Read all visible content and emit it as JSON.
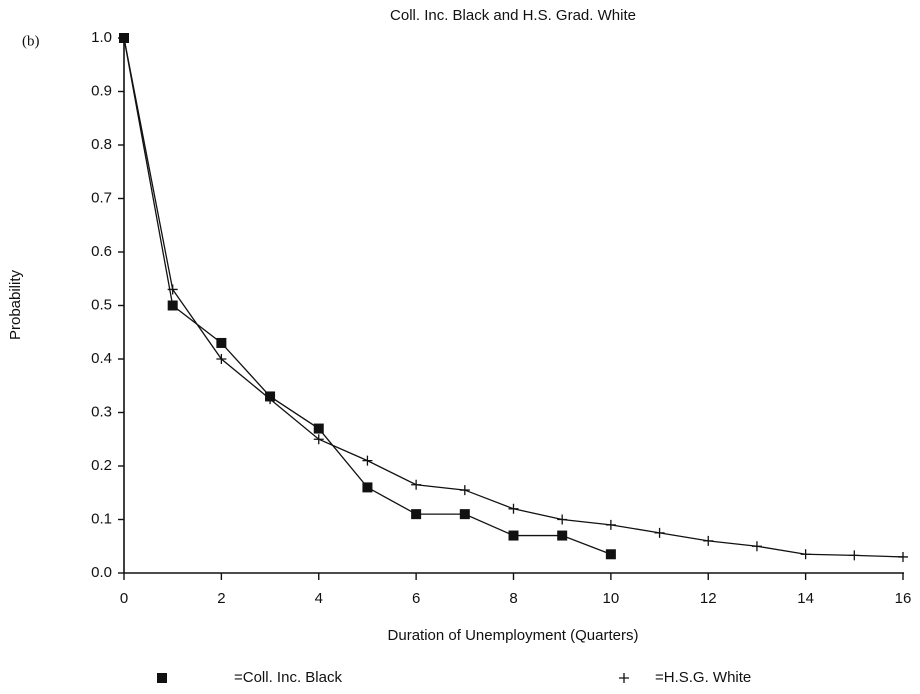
{
  "chart_data": {
    "type": "line",
    "title": "Coll. Inc. Black and H.S. Grad. White",
    "panel_label": "(b)",
    "x_label": "Duration of Unemployment (Quarters)",
    "y_label": "Probability",
    "xlim": [
      0,
      16
    ],
    "ylim": [
      0,
      1
    ],
    "xticks": [
      0,
      2,
      4,
      6,
      8,
      10,
      12,
      14,
      16
    ],
    "yticks": [
      {
        "value": 0,
        "label": "0.0"
      },
      0.1,
      0.2,
      0.3,
      0.4,
      0.5,
      0.6,
      0.7,
      0.8,
      0.9,
      {
        "value": 1,
        "label": "1.0"
      }
    ],
    "series": [
      {
        "name": "=Coll. Inc. Black",
        "color": "#111111",
        "marker": "square",
        "x": [
          0,
          1,
          2,
          3,
          4,
          5,
          6,
          7,
          8,
          9,
          10
        ],
        "values": [
          1.0,
          0.5,
          0.43,
          0.33,
          0.27,
          0.16,
          0.11,
          0.11,
          0.07,
          0.07,
          0.035
        ]
      },
      {
        "name": "=H.S.G. White",
        "color": "#111111",
        "marker": "plus",
        "x": [
          0,
          1,
          2,
          3,
          4,
          5,
          6,
          7,
          8,
          9,
          10,
          11,
          12,
          13,
          14,
          15,
          16
        ],
        "values": [
          1.0,
          0.53,
          0.4,
          0.325,
          0.25,
          0.21,
          0.165,
          0.155,
          0.12,
          0.1,
          0.09,
          0.075,
          0.06,
          0.05,
          0.035,
          0.033,
          0.03
        ]
      }
    ]
  }
}
